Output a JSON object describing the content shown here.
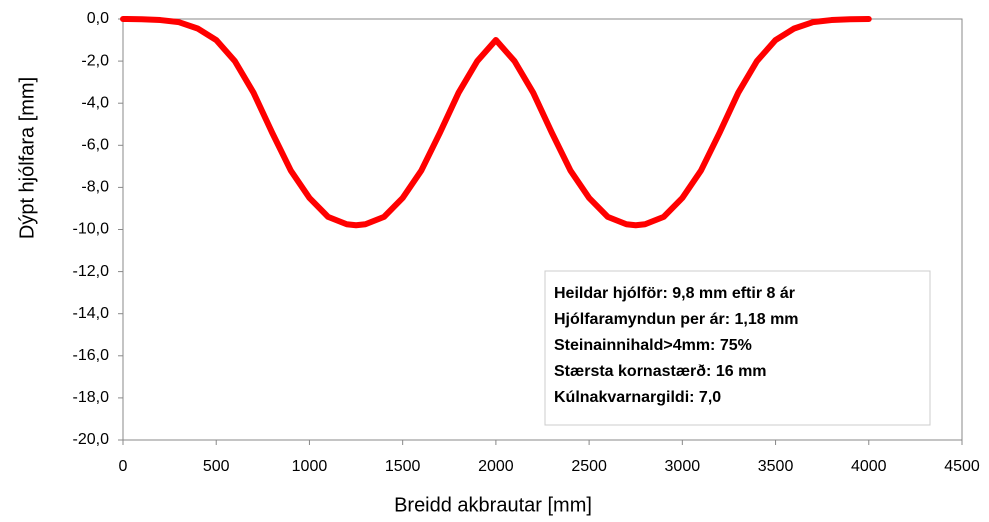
{
  "chart_data": {
    "type": "line",
    "xlabel": "Breidd akbrautar [mm]",
    "ylabel": "Dýpt hjólfara [mm]",
    "x": [
      0,
      100,
      200,
      300,
      400,
      500,
      600,
      700,
      800,
      900,
      1000,
      1100,
      1200,
      1250,
      1300,
      1400,
      1500,
      1600,
      1700,
      1800,
      1900,
      2000,
      2100,
      2200,
      2300,
      2400,
      2500,
      2600,
      2700,
      2750,
      2800,
      2900,
      3000,
      3100,
      3200,
      3300,
      3400,
      3500,
      3600,
      3700,
      3800,
      3900,
      4000
    ],
    "series": [
      {
        "color": "#ff0000",
        "values": [
          0,
          -0.01,
          -0.05,
          -0.15,
          -0.45,
          -1.0,
          -2.0,
          -3.5,
          -5.4,
          -7.2,
          -8.5,
          -9.4,
          -9.75,
          -9.8,
          -9.75,
          -9.4,
          -8.5,
          -7.2,
          -5.4,
          -3.5,
          -2.0,
          -1.0,
          -2.0,
          -3.5,
          -5.4,
          -7.2,
          -8.5,
          -9.4,
          -9.75,
          -9.8,
          -9.75,
          -9.4,
          -8.5,
          -7.2,
          -5.4,
          -3.5,
          -2.0,
          -1.0,
          -0.45,
          -0.15,
          -0.05,
          -0.01,
          0
        ]
      }
    ],
    "xlim": [
      0,
      4500
    ],
    "xticks": [
      0,
      500,
      1000,
      1500,
      2000,
      2500,
      3000,
      3500,
      4000,
      4500
    ],
    "ylim": [
      -20,
      0
    ],
    "yticks": [
      {
        "value": 0,
        "label": "0,0"
      },
      {
        "value": -2,
        "label": "-2,0"
      },
      {
        "value": -4,
        "label": "-4,0"
      },
      {
        "value": -6,
        "label": "-6,0"
      },
      {
        "value": -8,
        "label": "-8,0"
      },
      {
        "value": -10,
        "label": "-10,0"
      },
      {
        "value": -12,
        "label": "-12,0"
      },
      {
        "value": -14,
        "label": "-14,0"
      },
      {
        "value": -16,
        "label": "-16,0"
      },
      {
        "value": -18,
        "label": "-18,0"
      },
      {
        "value": -20,
        "label": "-20,0"
      }
    ],
    "annotations": [
      "Heildar hjólför: 9,8 mm eftir 8 ár",
      "Hjólfaramyndun per ár: 1,18 mm",
      "Steinainnihald>4mm: 75%",
      "Stærsta kornastærð: 16 mm",
      "Kúlnakvarnargildi: 7,0"
    ]
  }
}
